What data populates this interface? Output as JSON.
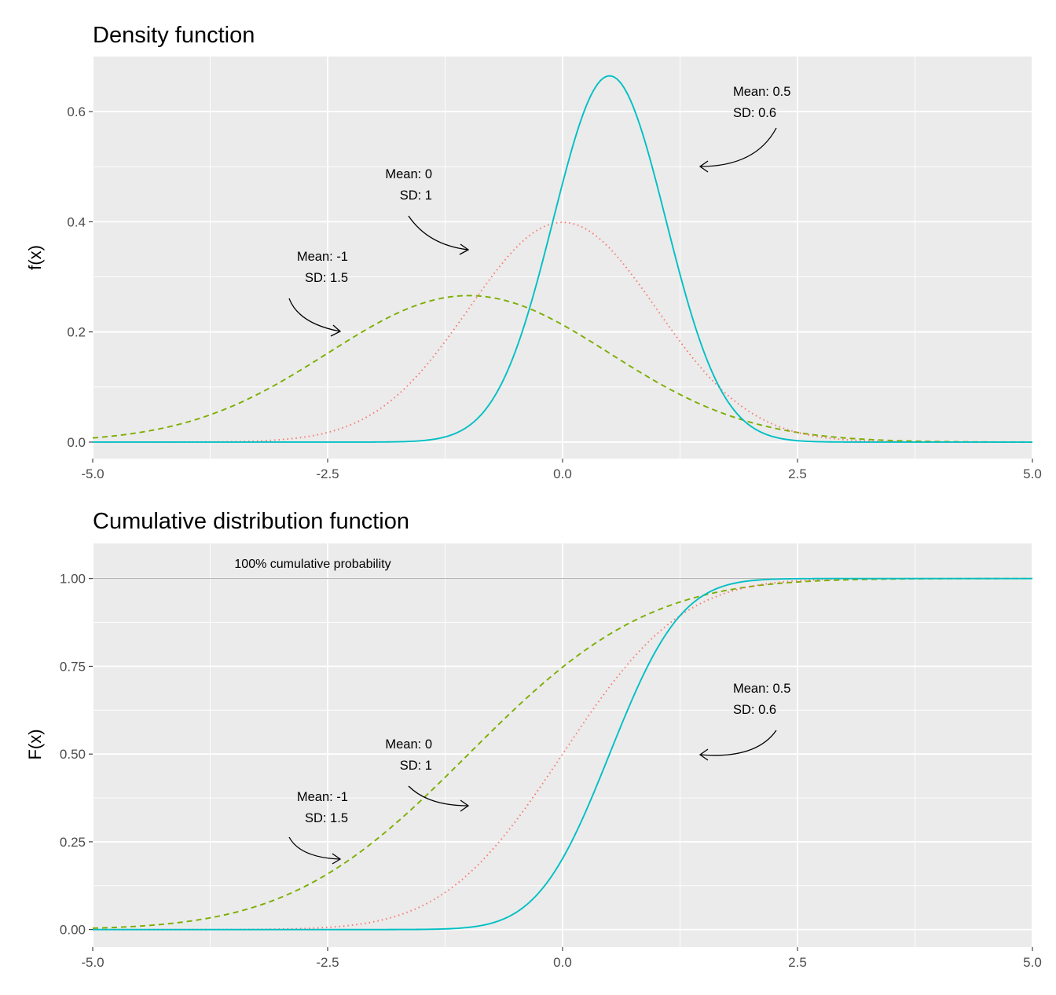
{
  "colors": {
    "panel_bg": "#EBEBEB",
    "grid": "#FFFFFF",
    "mean_neg1": "#7CAE00",
    "mean_0": "#F8766D",
    "mean_05": "#00BFC4",
    "tick_text": "#4D4D4D"
  },
  "chart_data": [
    {
      "type": "line",
      "title": "Density function",
      "xlabel": "",
      "ylabel": "f(x)",
      "xlim": [
        -5,
        5
      ],
      "ylim": [
        -0.03,
        0.7
      ],
      "x_ticks": [
        -5,
        -2.5,
        0,
        2.5,
        5
      ],
      "x_tick_labels": [
        "-5.0",
        "-2.5",
        "0.0",
        "2.5",
        "5.0"
      ],
      "y_ticks": [
        0,
        0.2,
        0.4,
        0.6
      ],
      "y_tick_labels": [
        "0.0",
        "0.2",
        "0.4",
        "0.6"
      ],
      "grid": true,
      "legend": "none",
      "series": [
        {
          "mean": -1,
          "sd": 1.5,
          "linestyle": "dashed",
          "color": "#7CAE00"
        },
        {
          "mean": 0,
          "sd": 1,
          "linestyle": "dotted",
          "color": "#F8766D"
        },
        {
          "mean": 0.5,
          "sd": 0.6,
          "linestyle": "solid",
          "color": "#00BFC4"
        }
      ],
      "annotations": [
        {
          "line1": "Mean: -1",
          "line2": "SD: 1.5",
          "points_to": [
            -2.5,
            0.2
          ]
        },
        {
          "line1": "Mean: 0",
          "line2": "SD: 1",
          "points_to": [
            -1.1,
            0.35
          ]
        },
        {
          "line1": "Mean: 0.5",
          "line2": "SD: 0.6",
          "points_to": [
            1.6,
            0.5
          ]
        }
      ]
    },
    {
      "type": "line",
      "title": "Cumulative distribution function",
      "xlabel": "",
      "ylabel": "F(x)",
      "xlim": [
        -5,
        5
      ],
      "ylim": [
        -0.05,
        1.1
      ],
      "x_ticks": [
        -5,
        -2.5,
        0,
        2.5,
        5
      ],
      "x_tick_labels": [
        "-5.0",
        "-2.5",
        "0.0",
        "2.5",
        "5.0"
      ],
      "y_ticks": [
        0,
        0.25,
        0.5,
        0.75,
        1
      ],
      "y_tick_labels": [
        "0.00",
        "0.25",
        "0.50",
        "0.75",
        "1.00"
      ],
      "grid": true,
      "legend": "none",
      "reference_line": {
        "y": 1,
        "label": "100% cumulative probability"
      },
      "series": [
        {
          "mean": -1,
          "sd": 1.5,
          "linestyle": "dashed",
          "color": "#7CAE00"
        },
        {
          "mean": 0,
          "sd": 1,
          "linestyle": "dotted",
          "color": "#F8766D"
        },
        {
          "mean": 0.5,
          "sd": 0.6,
          "linestyle": "solid",
          "color": "#00BFC4"
        }
      ],
      "annotations": [
        {
          "line1": "Mean: -1",
          "line2": "SD: 1.5",
          "points_to": [
            -2.5,
            0.2
          ]
        },
        {
          "line1": "Mean: 0",
          "line2": "SD: 1",
          "points_to": [
            -1.1,
            0.35
          ]
        },
        {
          "line1": "Mean: 0.5",
          "line2": "SD: 0.6",
          "points_to": [
            1.6,
            0.5
          ]
        }
      ]
    }
  ]
}
